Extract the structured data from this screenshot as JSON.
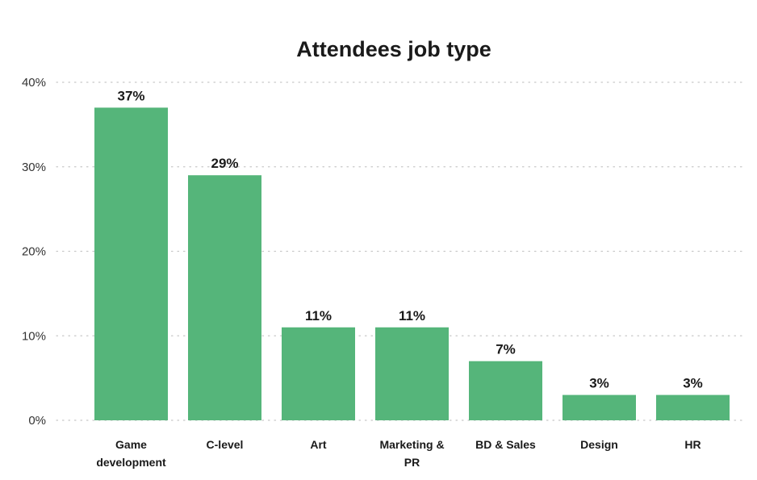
{
  "chart_data": {
    "type": "bar",
    "title": "Attendees job type",
    "categories": [
      [
        "Game",
        "development"
      ],
      [
        "C-level"
      ],
      [
        "Art"
      ],
      [
        "Marketing &",
        "PR"
      ],
      [
        "BD & Sales"
      ],
      [
        "Design"
      ],
      [
        "HR"
      ]
    ],
    "values": [
      37,
      29,
      11,
      11,
      7,
      3,
      3
    ],
    "value_labels": [
      "37%",
      "29%",
      "11%",
      "11%",
      "7%",
      "3%",
      "3%"
    ],
    "yticks": [
      0,
      10,
      20,
      30,
      40
    ],
    "ytick_labels": [
      "0%",
      "10%",
      "20%",
      "30%",
      "40%"
    ],
    "ylim": [
      0,
      40
    ],
    "xlabel": "",
    "ylabel": "",
    "grid": "dotted horizontal",
    "bar_color": "#55b57a"
  }
}
